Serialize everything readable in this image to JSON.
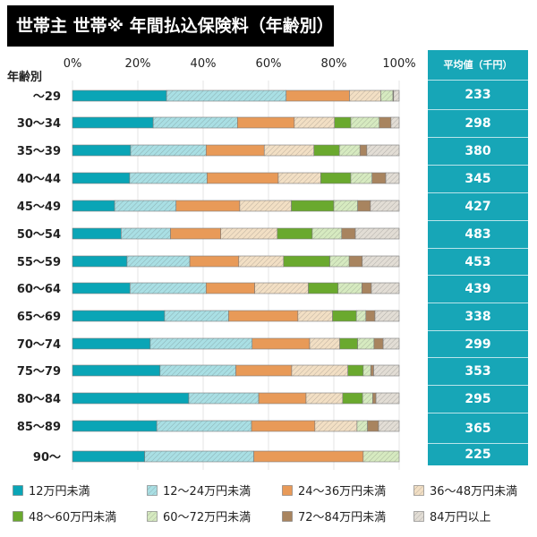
{
  "title": "世帯主 世帯※ 年間払込保険料（年齢別）",
  "panel": {
    "header": "平均値（千円）",
    "values": [
      "233",
      "298",
      "380",
      "345",
      "427",
      "483",
      "453",
      "439",
      "338",
      "299",
      "353",
      "295",
      "365",
      "225"
    ]
  },
  "chart_data": {
    "type": "bar",
    "orientation": "horizontal",
    "stacked": "percent",
    "title": "世帯主 世帯※ 年間払込保険料（年齢別）",
    "ylabel": "年齢別",
    "xlim": [
      0,
      100
    ],
    "xticks": [
      "0%",
      "20%",
      "40%",
      "60%",
      "80%",
      "100%"
    ],
    "grid": true,
    "legend": "bottom",
    "categories": [
      "～29",
      "30～34",
      "35～39",
      "40～44",
      "45～49",
      "50～54",
      "55～59",
      "60～64",
      "65～69",
      "70～74",
      "75～79",
      "80～84",
      "85～89",
      "90～"
    ],
    "series": [
      {
        "name": "12万円未満",
        "color": "#0aa5b6",
        "hatch": false,
        "values": [
          28.8,
          24.7,
          17.8,
          17.5,
          12.9,
          14.9,
          16.7,
          17.6,
          28.2,
          23.8,
          26.8,
          35.6,
          25.8,
          22.1
        ]
      },
      {
        "name": "12～24万円未満",
        "color": "#a9dfe4",
        "hatch": true,
        "values": [
          36.6,
          25.8,
          23.1,
          23.7,
          18.8,
          15.1,
          19.2,
          23.3,
          19.6,
          31.2,
          23.2,
          21.4,
          29.0,
          33.4
        ]
      },
      {
        "name": "24～36万円未満",
        "color": "#e89a58",
        "hatch": false,
        "values": [
          19.4,
          17.4,
          17.8,
          21.8,
          19.5,
          15.4,
          15.0,
          14.9,
          21.2,
          17.6,
          17.1,
          14.5,
          19.4,
          33.5
        ]
      },
      {
        "name": "36～48万円未満",
        "color": "#f2dfc4",
        "hatch": true,
        "values": [
          9.6,
          12.3,
          15.2,
          13.0,
          15.8,
          17.3,
          13.7,
          16.4,
          10.6,
          9.2,
          17.2,
          11.2,
          12.9,
          0
        ]
      },
      {
        "name": "48～60万円未満",
        "color": "#6aa92e",
        "hatch": false,
        "values": [
          0,
          5.0,
          7.8,
          9.2,
          13.0,
          10.7,
          14.2,
          9.1,
          7.3,
          5.5,
          4.7,
          6.1,
          0,
          0
        ]
      },
      {
        "name": "60～72万円未満",
        "color": "#d6eac0",
        "hatch": true,
        "values": [
          3.7,
          8.7,
          6.3,
          6.5,
          7.3,
          9.0,
          5.9,
          7.3,
          2.9,
          5.0,
          2.3,
          3.1,
          3.2,
          11.0
        ]
      },
      {
        "name": "72～84万円未満",
        "color": "#a8845f",
        "hatch": false,
        "values": [
          0.2,
          3.6,
          2.1,
          4.2,
          3.9,
          4.2,
          4.0,
          2.9,
          2.8,
          2.8,
          0.9,
          1.0,
          3.4,
          0
        ]
      },
      {
        "name": "84万円以上",
        "color": "#e2ddd5",
        "hatch": true,
        "values": [
          1.7,
          2.5,
          9.9,
          4.1,
          8.8,
          13.4,
          11.3,
          8.5,
          7.4,
          4.9,
          7.8,
          7.1,
          6.3,
          0
        ]
      }
    ]
  }
}
